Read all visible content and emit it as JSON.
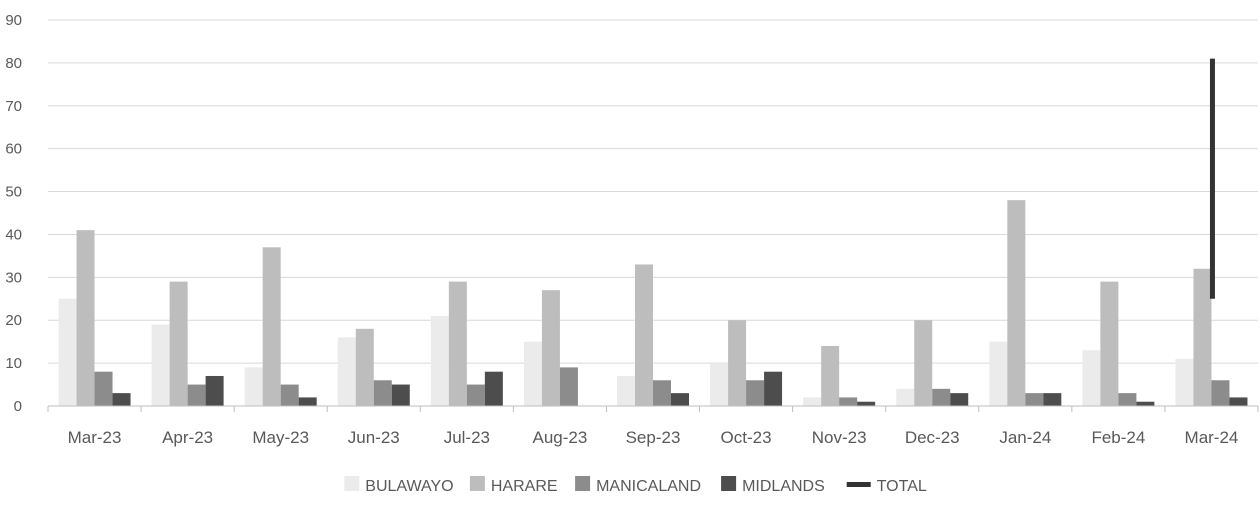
{
  "chart_data": {
    "type": "bar",
    "categories": [
      "Mar-23",
      "Apr-23",
      "May-23",
      "Jun-23",
      "Jul-23",
      "Aug-23",
      "Sep-23",
      "Oct-23",
      "Nov-23",
      "Dec-23",
      "Jan-24",
      "Feb-24",
      "Mar-24"
    ],
    "series": [
      {
        "name": "BULAWAYO",
        "color": "#ebebeb",
        "values": [
          25,
          19,
          9,
          16,
          21,
          15,
          7,
          10,
          2,
          4,
          15,
          13,
          11
        ]
      },
      {
        "name": "HARARE",
        "color": "#bdbdbd",
        "values": [
          41,
          29,
          37,
          18,
          29,
          27,
          33,
          20,
          14,
          20,
          48,
          29,
          32
        ]
      },
      {
        "name": "MANICALAND",
        "color": "#8c8c8c",
        "values": [
          8,
          5,
          5,
          6,
          5,
          9,
          6,
          6,
          2,
          4,
          3,
          3,
          6
        ]
      },
      {
        "name": "MIDLANDS",
        "color": "#4d4d4d",
        "values": [
          3,
          7,
          2,
          5,
          8,
          0,
          3,
          8,
          1,
          3,
          3,
          1,
          2
        ]
      },
      {
        "name": "TOTAL",
        "color": "#333333",
        "type": "line",
        "values": [
          null,
          null,
          null,
          null,
          null,
          null,
          null,
          null,
          null,
          null,
          null,
          null,
          81
        ],
        "segment_start": 25
      }
    ],
    "yticks": [
      "0",
      "10",
      "20",
      "30",
      "40",
      "50",
      "60",
      "70",
      "80",
      "90"
    ],
    "ylim": [
      0,
      90
    ],
    "grid": true,
    "legend": "bottom",
    "title": "",
    "xlabel": "",
    "ylabel": ""
  }
}
